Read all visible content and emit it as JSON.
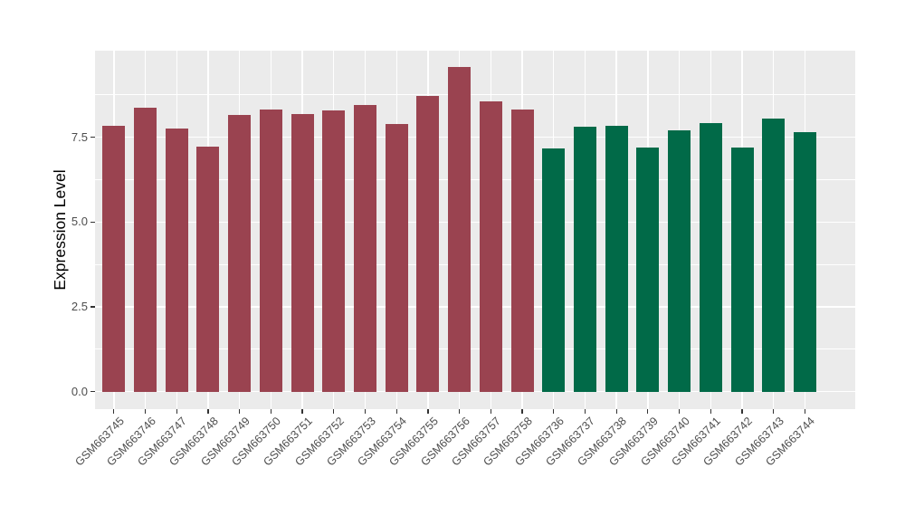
{
  "chart_data": {
    "type": "bar",
    "title": "",
    "xlabel": "",
    "ylabel": "Expression Level",
    "legend_position": "none",
    "grid": "on",
    "panel_bg_color": "#EBEBEB",
    "grid_color": "#FFFFFF",
    "axis_text_color": "#4D4D4D",
    "axis_title_color": "#000000",
    "tick_mark_color": "#333333",
    "bar_colors": [
      "#9A4350",
      "#016A48"
    ],
    "ylim": [
      -0.5,
      10.05
    ],
    "yticks": [
      {
        "value": 0.0,
        "label": "0.0"
      },
      {
        "value": 2.5,
        "label": "2.5"
      },
      {
        "value": 5.0,
        "label": "5.0"
      },
      {
        "value": 7.5,
        "label": "7.5"
      }
    ],
    "yminor": [
      1.25,
      3.75,
      6.25,
      8.75
    ],
    "categories": [
      "GSM663745",
      "GSM663746",
      "GSM663747",
      "GSM663748",
      "GSM663749",
      "GSM663750",
      "GSM663751",
      "GSM663752",
      "GSM663753",
      "GSM663754",
      "GSM663755",
      "GSM663756",
      "GSM663757",
      "GSM663758",
      "GSM663736",
      "GSM663737",
      "GSM663738",
      "GSM663739",
      "GSM663740",
      "GSM663741",
      "GSM663742",
      "GSM663743",
      "GSM663744"
    ],
    "bars": [
      {
        "label": "GSM663745",
        "value": 7.83,
        "group": 0
      },
      {
        "label": "GSM663746",
        "value": 8.37,
        "group": 0
      },
      {
        "label": "GSM663747",
        "value": 7.75,
        "group": 0
      },
      {
        "label": "GSM663748",
        "value": 7.22,
        "group": 0
      },
      {
        "label": "GSM663749",
        "value": 8.17,
        "group": 0
      },
      {
        "label": "GSM663750",
        "value": 8.32,
        "group": 0
      },
      {
        "label": "GSM663751",
        "value": 8.19,
        "group": 0
      },
      {
        "label": "GSM663752",
        "value": 8.29,
        "group": 0
      },
      {
        "label": "GSM663753",
        "value": 8.46,
        "group": 0
      },
      {
        "label": "GSM663754",
        "value": 7.9,
        "group": 0
      },
      {
        "label": "GSM663755",
        "value": 8.72,
        "group": 0
      },
      {
        "label": "GSM663756",
        "value": 9.56,
        "group": 0
      },
      {
        "label": "GSM663757",
        "value": 8.57,
        "group": 0
      },
      {
        "label": "GSM663758",
        "value": 8.31,
        "group": 0
      },
      {
        "label": "GSM663736",
        "value": 7.18,
        "group": 1
      },
      {
        "label": "GSM663737",
        "value": 7.82,
        "group": 1
      },
      {
        "label": "GSM663738",
        "value": 7.84,
        "group": 1
      },
      {
        "label": "GSM663739",
        "value": 7.2,
        "group": 1
      },
      {
        "label": "GSM663740",
        "value": 7.7,
        "group": 1
      },
      {
        "label": "GSM663741",
        "value": 7.93,
        "group": 1
      },
      {
        "label": "GSM663742",
        "value": 7.21,
        "group": 1
      },
      {
        "label": "GSM663743",
        "value": 8.05,
        "group": 1
      },
      {
        "label": "GSM663744",
        "value": 7.66,
        "group": 1
      }
    ]
  }
}
